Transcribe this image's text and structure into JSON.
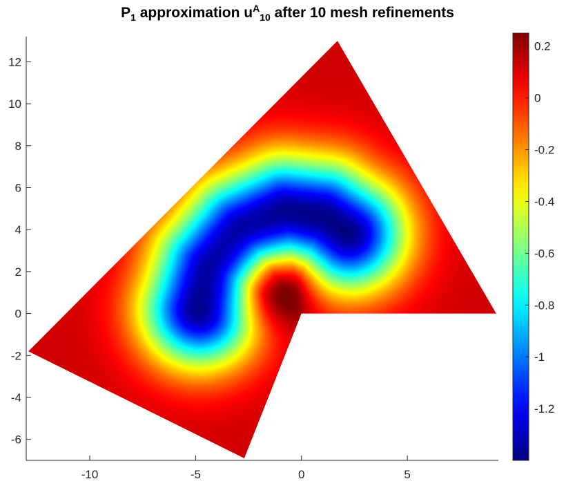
{
  "chart_data": {
    "type": "heatmap",
    "title": {
      "prefix": "P",
      "prefix_sub": "1",
      "mid": " approximation u",
      "mid_sup": "A",
      "mid_sub": "10",
      "suffix": " after 10 mesh refinements"
    },
    "xlim": [
      -13,
      9.3
    ],
    "ylim": [
      -7,
      13.2
    ],
    "xticks": [
      -10,
      -5,
      0,
      5
    ],
    "xtick_labels": [
      "-10",
      "-5",
      "0",
      "5"
    ],
    "yticks": [
      -6,
      -4,
      -2,
      0,
      2,
      4,
      6,
      8,
      10,
      12
    ],
    "ytick_labels": [
      "-6",
      "-4",
      "-2",
      "0",
      "2",
      "4",
      "6",
      "8",
      "10",
      "12"
    ],
    "domain_polygon": [
      [
        1.7,
        13
      ],
      [
        9.2,
        0
      ],
      [
        0,
        0
      ],
      [
        -2.7,
        -6.9
      ],
      [
        -12.9,
        -1.8
      ]
    ],
    "colorbar": {
      "colormap": "jet",
      "clim": [
        -1.4,
        0.25
      ],
      "ticks": [
        0.2,
        0,
        -0.2,
        -0.4,
        -0.6,
        -0.8,
        -1,
        -1.2
      ],
      "tick_labels": [
        "0.2",
        "0",
        "-0.2",
        "-0.4",
        "-0.6",
        "-0.8",
        "-1",
        "-1.2"
      ]
    },
    "features": {
      "max_value": 0.25,
      "max_location": [
        -1.5,
        1.5
      ],
      "min_value": -1.4,
      "min_region": "crescent from (-5, 0) to (2, 4.5)"
    },
    "grid": false,
    "legend": "none"
  }
}
